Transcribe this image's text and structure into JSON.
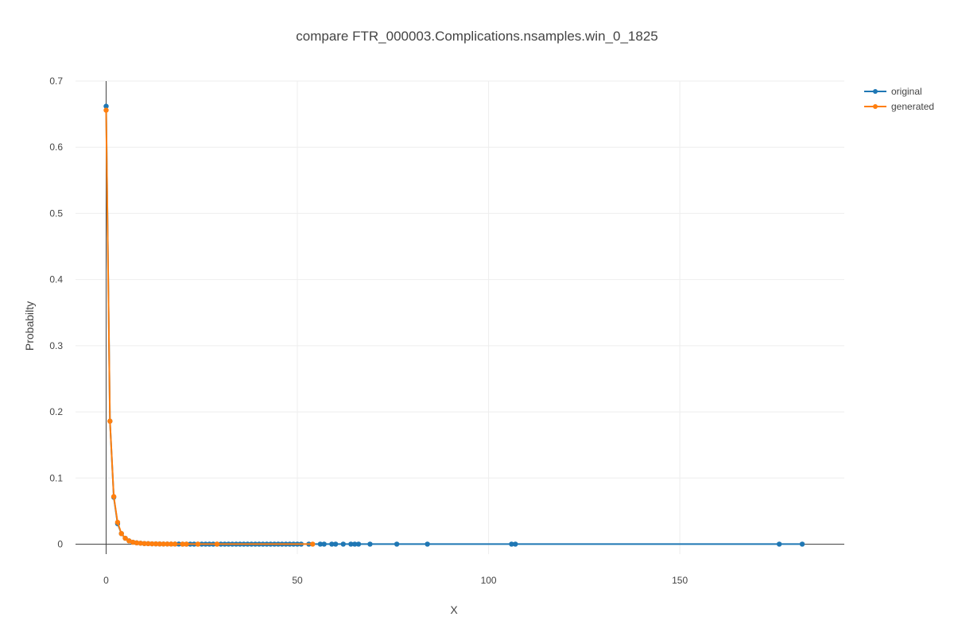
{
  "chart_data": {
    "type": "line",
    "title": "compare FTR_000003.Complications.nsamples.win_0_1825",
    "xlabel": "X",
    "ylabel": "Probabilty",
    "xlim": [
      -8,
      193
    ],
    "ylim": [
      -0.015,
      0.7
    ],
    "x_ticks": [
      0,
      50,
      100,
      150
    ],
    "y_ticks": [
      0,
      0.1,
      0.2,
      0.3,
      0.4,
      0.5,
      0.6,
      0.7
    ],
    "y_tick_labels": [
      "0",
      "0.1",
      "0.2",
      "0.3",
      "0.4",
      "0.5",
      "0.6",
      "0.7"
    ],
    "x_tick_labels": [
      "0",
      "50",
      "100",
      "150"
    ],
    "grid": true,
    "legend": "top-right",
    "series": [
      {
        "name": "original",
        "color": "#1f77b4",
        "x": [
          0,
          1,
          2,
          3,
          4,
          5,
          6,
          7,
          8,
          9,
          10,
          11,
          12,
          13,
          14,
          15,
          16,
          17,
          18,
          19,
          20,
          21,
          22,
          23,
          24,
          25,
          26,
          27,
          28,
          29,
          30,
          31,
          32,
          33,
          34,
          35,
          36,
          37,
          38,
          39,
          40,
          41,
          42,
          43,
          44,
          45,
          46,
          47,
          48,
          49,
          50,
          51,
          53,
          56,
          57,
          59,
          60,
          62,
          64,
          65,
          66,
          69,
          76,
          84,
          106,
          107,
          176,
          182
        ],
        "y": [
          0.662,
          0.186,
          0.071,
          0.031,
          0.016,
          0.009,
          0.005,
          0.003,
          0.002,
          0.0015,
          0.001,
          0.0008,
          0.0006,
          0.0005,
          0.0004,
          0.0003,
          0.0003,
          0.0002,
          0.0002,
          0.0002,
          0.0001,
          0.0001,
          0.0001,
          0.0001,
          0.0001,
          0.0001,
          0.0001,
          0.0001,
          0.0001,
          0.0001,
          0.0001,
          0.0001,
          0.0001,
          0.0001,
          0.0001,
          0.0001,
          0.0001,
          0.0001,
          0.0001,
          0.0001,
          0.0001,
          0.0001,
          0.0001,
          0.0001,
          0.0001,
          0.0001,
          0.0001,
          0.0001,
          0.0001,
          0.0001,
          0.0001,
          0.0001,
          0.0001,
          0.0001,
          0.0001,
          0.0001,
          0.0001,
          0.0001,
          0.0001,
          0.0001,
          0.0001,
          0.0001,
          0.0001,
          0.0001,
          0.0001,
          0.0001,
          0.0001,
          0.0001
        ]
      },
      {
        "name": "generated",
        "color": "#ff7f0e",
        "x": [
          0,
          1,
          2,
          3,
          4,
          5,
          6,
          7,
          8,
          9,
          10,
          11,
          12,
          13,
          14,
          15,
          16,
          17,
          18,
          20,
          21,
          24,
          29,
          54
        ],
        "y": [
          0.656,
          0.186,
          0.072,
          0.033,
          0.016,
          0.009,
          0.005,
          0.003,
          0.002,
          0.0015,
          0.001,
          0.0008,
          0.0006,
          0.0005,
          0.0004,
          0.0003,
          0.0003,
          0.0002,
          0.0002,
          0.0001,
          0.0001,
          0.0001,
          0.0001,
          0.0001
        ]
      }
    ]
  }
}
